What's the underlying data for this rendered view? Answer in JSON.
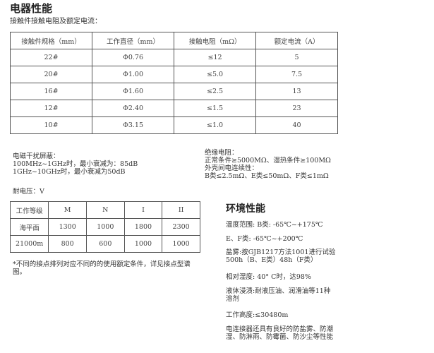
{
  "electrical": {
    "title": "电器性能",
    "subtitle": "接触件接触电阻及额定电流：",
    "table": {
      "headers": [
        "接触件规格（mm）",
        "工作直径（mm）",
        "接触电阻（mΩ）",
        "额定电流（A）"
      ],
      "rows": [
        [
          "22#",
          "Φ0.76",
          "≤12",
          "5"
        ],
        [
          "20#",
          "Φ1.00",
          "≤5.0",
          "7.5"
        ],
        [
          "16#",
          "Φ1.60",
          "≤2.5",
          "13"
        ],
        [
          "12#",
          "Φ2.40",
          "≤1.5",
          "23"
        ],
        [
          "10#",
          "Φ3.15",
          "≤1.0",
          "40"
        ]
      ]
    },
    "emi": [
      "电磁干扰屏蔽：",
      "100MHz~1GHz时，最小衰减为：85dB",
      "1GHz~10GHz时，最小衰减为50dB"
    ],
    "insulation": [
      "绝缘电阻：",
      "正常条件≥5000MΩ、湿热条件≥100MΩ",
      "外壳间电连续性：",
      "B类≤2.5mΩ、E类≤50mΩ、F类≤1mΩ"
    ],
    "voltage_label": "耐电压：V",
    "voltage_table": {
      "headers": [
        "工作等级",
        "M",
        "N",
        "I",
        "II"
      ],
      "rows": [
        [
          "海平面",
          "1300",
          "1000",
          "1800",
          "2300"
        ],
        [
          "21000m",
          "800",
          "600",
          "1000",
          "1000"
        ]
      ]
    },
    "note": [
      "*不同的接点排列对应不同的的使用额定条件，详见接点型谱",
      "图。"
    ]
  },
  "environment": {
    "title": "环境性能",
    "items": [
      [
        "温度范围: B类: -65℃~+175℃"
      ],
      [
        "E、F类: -65℃~+200℃"
      ],
      [
        "盐雾:按GJB1217方法1001进行试验",
        "500h（B、E类）48h（F类）"
      ],
      [
        "相对湿度: 40° C时，达98%"
      ],
      [
        "液体浸渍:耐液压油、润滑油等11种",
        "溶剂"
      ],
      [
        "工作高度:≤30480m"
      ],
      [
        "电连接器还具有良好的防盐雾、防潮",
        "湿、防淋雨、防霉菌、防沙尘等性能"
      ]
    ]
  }
}
